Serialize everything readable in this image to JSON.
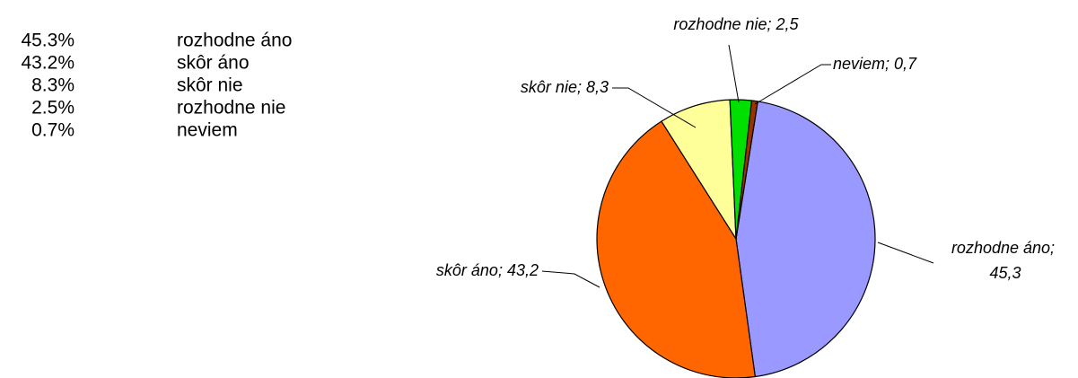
{
  "chart_data": {
    "type": "pie",
    "categories": [
      "rozhodne áno",
      "skôr áno",
      "skôr nie",
      "rozhodne nie",
      "neviem"
    ],
    "values": [
      45.3,
      43.2,
      8.3,
      2.5,
      0.7
    ],
    "value_labels": [
      "45,3",
      "43,2",
      "8,3",
      "2,5",
      "0,7"
    ],
    "table_labels": [
      "45.3%",
      "43.2%",
      "8.3%",
      "2.5%",
      "0.7%"
    ],
    "label_separator": "; ",
    "colors": [
      "#9999ff",
      "#ff6600",
      "#ffff99",
      "#00e000",
      "#993300"
    ]
  }
}
